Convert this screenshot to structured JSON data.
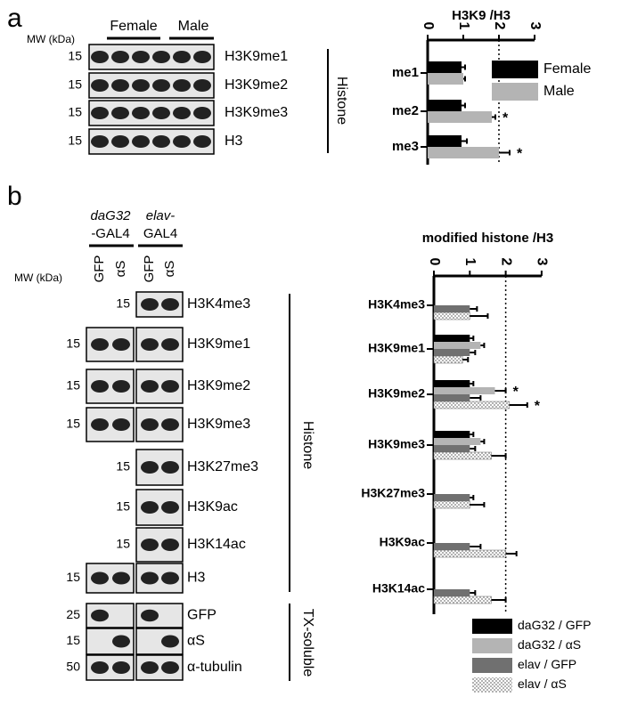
{
  "panels": {
    "a": {
      "label": "a",
      "mw_header": "MW (kDa)",
      "groups": [
        "Female",
        "Male"
      ],
      "rows": [
        {
          "mw": 15,
          "name": "H3K9me1"
        },
        {
          "mw": 15,
          "name": "H3K9me2"
        },
        {
          "mw": 15,
          "name": "H3K9me3"
        },
        {
          "mw": 15,
          "name": "H3"
        }
      ],
      "bracket": "Histone"
    },
    "b": {
      "label": "b",
      "mw_header": "MW (kDa)",
      "drivers": [
        {
          "name": "daG32",
          "suffix": "-GAL4"
        },
        {
          "name": "elav-",
          "suffix": "GAL4"
        }
      ],
      "lanes": [
        "GFP",
        "αS"
      ],
      "rows": [
        {
          "mw": 15,
          "name": "H3K4me3",
          "driver_blots": [
            false,
            true
          ]
        },
        {
          "mw": 15,
          "name": "H3K9me1",
          "driver_blots": [
            true,
            true
          ]
        },
        {
          "mw": 15,
          "name": "H3K9me2",
          "driver_blots": [
            true,
            true
          ]
        },
        {
          "mw": 15,
          "name": "H3K9me3",
          "driver_blots": [
            true,
            true
          ]
        },
        {
          "mw": 15,
          "name": "H3K27me3",
          "driver_blots": [
            false,
            true
          ]
        },
        {
          "mw": 15,
          "name": "H3K9ac",
          "driver_blots": [
            false,
            true
          ]
        },
        {
          "mw": 15,
          "name": "H3K14ac",
          "driver_blots": [
            false,
            true
          ]
        },
        {
          "mw": 15,
          "name": "H3",
          "driver_blots": [
            true,
            true
          ]
        },
        {
          "mw": 25,
          "name": "GFP",
          "driver_blots": [
            true,
            true
          ]
        },
        {
          "mw": 15,
          "name": "αS",
          "driver_blots": [
            true,
            true
          ]
        },
        {
          "mw": 50,
          "name": "α-tubulin",
          "driver_blots": [
            true,
            true
          ]
        }
      ],
      "brackets": [
        "Histone",
        "TX-soluble"
      ]
    }
  },
  "chart_data": [
    {
      "type": "bar",
      "orientation": "horizontal",
      "title": "H3K9 /H3",
      "categories": [
        "me1",
        "me2",
        "me3"
      ],
      "series": [
        {
          "name": "Female",
          "color": "#000000",
          "values": [
            0.95,
            0.95,
            0.95
          ],
          "errors": [
            0.1,
            0.1,
            0.15
          ]
        },
        {
          "name": "Male",
          "color": "#b4b4b4",
          "values": [
            1.0,
            1.8,
            2.0
          ],
          "errors": [
            0.05,
            0.1,
            0.3
          ],
          "significance": [
            null,
            "*",
            "*"
          ]
        }
      ],
      "xlim": [
        0,
        3
      ],
      "xticks": [
        0,
        1,
        2,
        3
      ],
      "reference_line": 2,
      "legend": "upper right"
    },
    {
      "type": "bar",
      "orientation": "horizontal",
      "title": "modified histone /H3",
      "categories": [
        "H3K4me3",
        "H3K9me1",
        "H3K9me2",
        "H3K9me3",
        "H3K27me3",
        "H3K9ac",
        "H3K14ac"
      ],
      "series": [
        {
          "name": "daG32 / GFP",
          "color": "#000000",
          "values": [
            null,
            1.0,
            1.0,
            1.0,
            null,
            null,
            null
          ],
          "errors": [
            null,
            0.1,
            0.1,
            0.1,
            null,
            null,
            null
          ]
        },
        {
          "name": "daG32 / αS",
          "color": "#b4b4b4",
          "values": [
            null,
            1.3,
            1.7,
            1.3,
            null,
            null,
            null
          ],
          "errors": [
            null,
            0.1,
            0.3,
            0.1,
            null,
            null,
            null
          ],
          "significance": [
            null,
            null,
            "*",
            null,
            null,
            null,
            null
          ]
        },
        {
          "name": "elav / GFP",
          "color": "#707070",
          "values": [
            1.0,
            1.0,
            1.0,
            1.0,
            1.0,
            1.0,
            1.0
          ],
          "errors": [
            0.2,
            0.15,
            0.3,
            0.15,
            0.1,
            0.3,
            0.15
          ]
        },
        {
          "name": "elav / αS",
          "color": "#9a9a9a",
          "pattern": "dots",
          "values": [
            1.0,
            0.8,
            2.1,
            1.6,
            1.0,
            2.0,
            1.6
          ],
          "errors": [
            0.5,
            0.15,
            0.5,
            0.4,
            0.4,
            0.3,
            0.4
          ],
          "significance": [
            null,
            null,
            "*",
            null,
            null,
            null,
            null
          ]
        }
      ],
      "xlim": [
        0,
        3
      ],
      "xticks": [
        0,
        1,
        2,
        3
      ],
      "reference_line": 2,
      "legend": "lower right"
    }
  ]
}
